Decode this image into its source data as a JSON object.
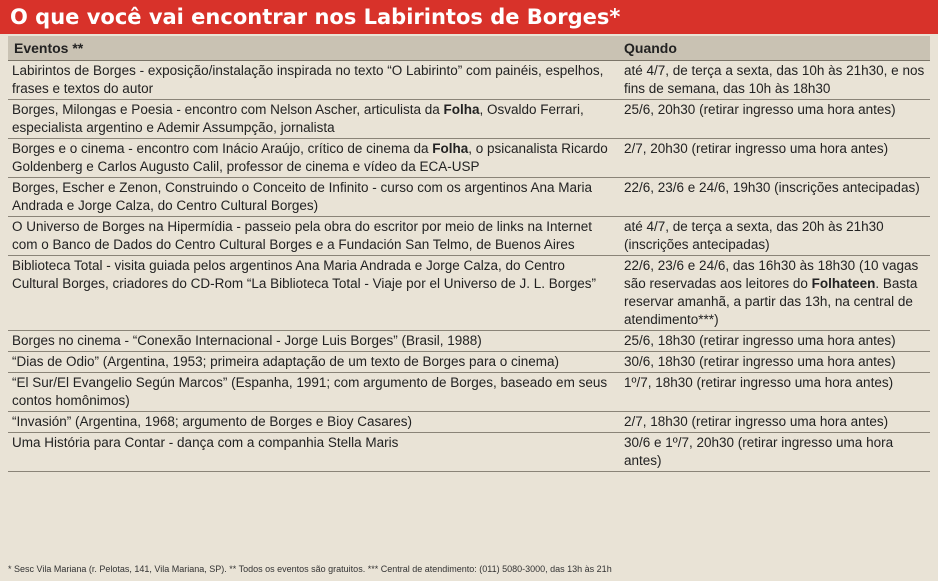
{
  "title": "O que você vai encontrar nos Labirintos de Borges*",
  "header": {
    "col1": "Eventos **",
    "col2": "Quando"
  },
  "rows": [
    {
      "ev_pre": "Labirintos de Borges - exposição/instalação inspirada no texto “O Labirinto” com painéis, espelhos, frases e textos do autor",
      "ev_bold": "",
      "ev_post": "",
      "when_pre": "até 4/7, de terça a sexta, das 10h às 21h30, e nos fins de semana, das 10h às 18h30",
      "when_bold": "",
      "when_post": ""
    },
    {
      "ev_pre": "Borges, Milongas e Poesia - encontro com Nelson Ascher, articulista da ",
      "ev_bold": "Folha",
      "ev_post": ", Osvaldo Ferrari, especialista argentino e Ademir Assumpção, jornalista",
      "when_pre": "25/6, 20h30 (retirar ingresso uma hora antes)",
      "when_bold": "",
      "when_post": ""
    },
    {
      "ev_pre": "Borges e o cinema - encontro com Inácio Araújo, crítico de cinema da ",
      "ev_bold": "Folha",
      "ev_post": ", o psicanalista Ricardo Goldenberg e Carlos Augusto Calil, professor de cinema e vídeo da ECA-USP",
      "when_pre": "2/7, 20h30 (retirar ingresso uma hora antes)",
      "when_bold": "",
      "when_post": ""
    },
    {
      "ev_pre": "Borges, Escher e Zenon, Construindo o Conceito de Infinito - curso com os argentinos Ana Maria Andrada e Jorge Calza, do Centro Cultural Borges)",
      "ev_bold": "",
      "ev_post": "",
      "when_pre": "22/6, 23/6 e 24/6, 19h30 (inscrições antecipadas)",
      "when_bold": "",
      "when_post": ""
    },
    {
      "ev_pre": "O Universo de Borges na Hipermídia - passeio pela obra do escritor por meio de links na Internet com o Banco de Dados do Centro Cultural Borges e a Fundación San Telmo, de Buenos Aires",
      "ev_bold": "",
      "ev_post": "",
      "when_pre": "até 4/7, de terça a sexta, das 20h às 21h30 (inscrições antecipadas)",
      "when_bold": "",
      "when_post": ""
    },
    {
      "ev_pre": "Biblioteca Total - visita guiada pelos argentinos Ana Maria Andrada e Jorge Calza, do Centro Cultural Borges, criadores do CD-Rom “La Biblioteca Total - Viaje por el Universo de J. L. Borges”",
      "ev_bold": "",
      "ev_post": "",
      "when_pre": "22/6, 23/6 e 24/6, das 16h30 às 18h30 (10 vagas são reservadas aos leitores do ",
      "when_bold": "Folhateen",
      "when_post": ". Basta reservar amanhã, a partir das 13h, na central de atendimento***)"
    },
    {
      "ev_pre": "Borges no cinema - “Conexão Internacional - Jorge Luis Borges” (Brasil, 1988)",
      "ev_bold": "",
      "ev_post": "",
      "when_pre": "25/6, 18h30 (retirar ingresso uma hora antes)",
      "when_bold": "",
      "when_post": ""
    },
    {
      "ev_pre": "“Dias de Odio” (Argentina, 1953; primeira adaptação de um texto de Borges para o cinema)",
      "ev_bold": "",
      "ev_post": "",
      "when_pre": "30/6, 18h30 (retirar ingresso uma hora antes)",
      "when_bold": "",
      "when_post": ""
    },
    {
      "ev_pre": "“El Sur/El Evangelio Según Marcos” (Espanha, 1991; com argumento de Borges, baseado em seus contos homônimos)",
      "ev_bold": "",
      "ev_post": "",
      "when_pre": "1º/7, 18h30 (retirar ingresso uma hora antes)",
      "when_bold": "",
      "when_post": ""
    },
    {
      "ev_pre": "“Invasión” (Argentina, 1968; argumento de Borges e Bioy Casares)",
      "ev_bold": "",
      "ev_post": "",
      "when_pre": "2/7, 18h30 (retirar ingresso uma hora antes)",
      "when_bold": "",
      "when_post": ""
    },
    {
      "ev_pre": "Uma História para Contar - dança com a companhia Stella Maris",
      "ev_bold": "",
      "ev_post": "",
      "when_pre": "30/6 e 1º/7, 20h30 (retirar ingresso uma hora antes)",
      "when_bold": "",
      "when_post": ""
    }
  ],
  "footnote": "* Sesc Vila Mariana (r. Pelotas, 141, Vila Mariana, SP). ** Todos os eventos são gratuitos. *** Central de atendimento: (011) 5080-3000, das 13h às 21h"
}
